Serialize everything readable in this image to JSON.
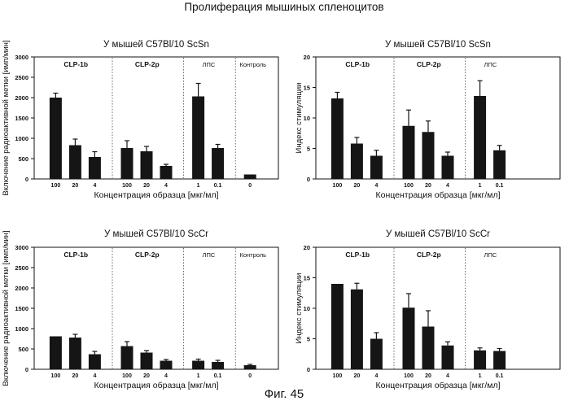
{
  "figure": {
    "title": "Пролиферация мышиных спленоцитов",
    "caption": "Фиг. 45"
  },
  "chart_data": [
    {
      "type": "bar",
      "title": "У мышей C57Bl/10 ScSn",
      "xlabel": "Концентрация образца [мкг/мл]",
      "ylabel": "Включение радиоактивной метки [имп/мин]",
      "ylim": [
        0,
        3000
      ],
      "yticks": [
        0,
        500,
        1000,
        1500,
        2000,
        2500,
        3000
      ],
      "groups": [
        {
          "name": "CLP-1b",
          "bold": true,
          "categories": [
            "100",
            "20",
            "4"
          ],
          "values": [
            2000,
            830,
            540
          ],
          "errors": [
            110,
            150,
            130
          ]
        },
        {
          "name": "CLP-2p",
          "bold": true,
          "categories": [
            "100",
            "20",
            "4"
          ],
          "values": [
            760,
            680,
            320
          ],
          "errors": [
            180,
            120,
            40
          ]
        },
        {
          "name": "ЛПС",
          "bold": false,
          "categories": [
            "1",
            "0.1"
          ],
          "values": [
            2030,
            760
          ],
          "errors": [
            320,
            90
          ]
        },
        {
          "name": "Контроль",
          "bold": false,
          "categories": [
            "0"
          ],
          "values": [
            110
          ],
          "errors": [
            0
          ]
        }
      ]
    },
    {
      "type": "bar",
      "title": "У мышей C57Bl/10 ScSn",
      "xlabel": "Концентрация образца [мкг/мл]",
      "ylabel": "Индекс стимуляции",
      "ylim": [
        0,
        20
      ],
      "yticks": [
        0,
        5,
        10,
        15,
        20
      ],
      "groups": [
        {
          "name": "CLP-1b",
          "bold": true,
          "categories": [
            "100",
            "20",
            "4"
          ],
          "values": [
            13.2,
            5.8,
            3.8
          ],
          "errors": [
            1.0,
            1.0,
            0.9
          ]
        },
        {
          "name": "CLP-2p",
          "bold": true,
          "categories": [
            "100",
            "20",
            "4"
          ],
          "values": [
            8.7,
            7.7,
            3.8
          ],
          "errors": [
            2.6,
            1.8,
            0.6
          ]
        },
        {
          "name": "ЛПС",
          "bold": false,
          "categories": [
            "1",
            "0.1"
          ],
          "values": [
            13.6,
            4.7
          ],
          "errors": [
            2.5,
            0.8
          ]
        }
      ]
    },
    {
      "type": "bar",
      "title": "У мышей C57Bl/10 ScCr",
      "xlabel": "Концентрация образца [мкг/мл]",
      "ylabel": "Включение радиоактивной метки [имп/мин]",
      "ylim": [
        0,
        3000
      ],
      "yticks": [
        0,
        500,
        1000,
        1500,
        2000,
        2500,
        3000
      ],
      "groups": [
        {
          "name": "CLP-1b",
          "bold": true,
          "categories": [
            "100",
            "20",
            "4"
          ],
          "values": [
            810,
            780,
            370
          ],
          "errors": [
            0,
            80,
            70
          ]
        },
        {
          "name": "CLP-2p",
          "bold": true,
          "categories": [
            "100",
            "20",
            "4"
          ],
          "values": [
            570,
            410,
            210
          ],
          "errors": [
            110,
            50,
            30
          ]
        },
        {
          "name": "ЛПС",
          "bold": false,
          "categories": [
            "1",
            "0.1"
          ],
          "values": [
            210,
            180
          ],
          "errors": [
            40,
            40
          ]
        },
        {
          "name": "Контроль",
          "bold": false,
          "categories": [
            "0"
          ],
          "values": [
            100
          ],
          "errors": [
            20
          ]
        }
      ]
    },
    {
      "type": "bar",
      "title": "У мышей C57Bl/10 ScCr",
      "xlabel": "Концентрация образца [мкг/мл]",
      "ylabel": "Индекс стимуляции",
      "ylim": [
        0,
        20
      ],
      "yticks": [
        0,
        5,
        10,
        15,
        20
      ],
      "groups": [
        {
          "name": "CLP-1b",
          "bold": true,
          "categories": [
            "100",
            "20",
            "4"
          ],
          "values": [
            14.0,
            13.1,
            5.0
          ],
          "errors": [
            0,
            1.0,
            1.0
          ]
        },
        {
          "name": "CLP-2p",
          "bold": true,
          "categories": [
            "100",
            "20",
            "4"
          ],
          "values": [
            10.1,
            7.0,
            3.9
          ],
          "errors": [
            2.3,
            2.6,
            0.6
          ]
        },
        {
          "name": "ЛПС",
          "bold": false,
          "categories": [
            "1",
            "0.1"
          ],
          "values": [
            3.1,
            3.0
          ],
          "errors": [
            0.4,
            0.4
          ]
        }
      ]
    }
  ]
}
